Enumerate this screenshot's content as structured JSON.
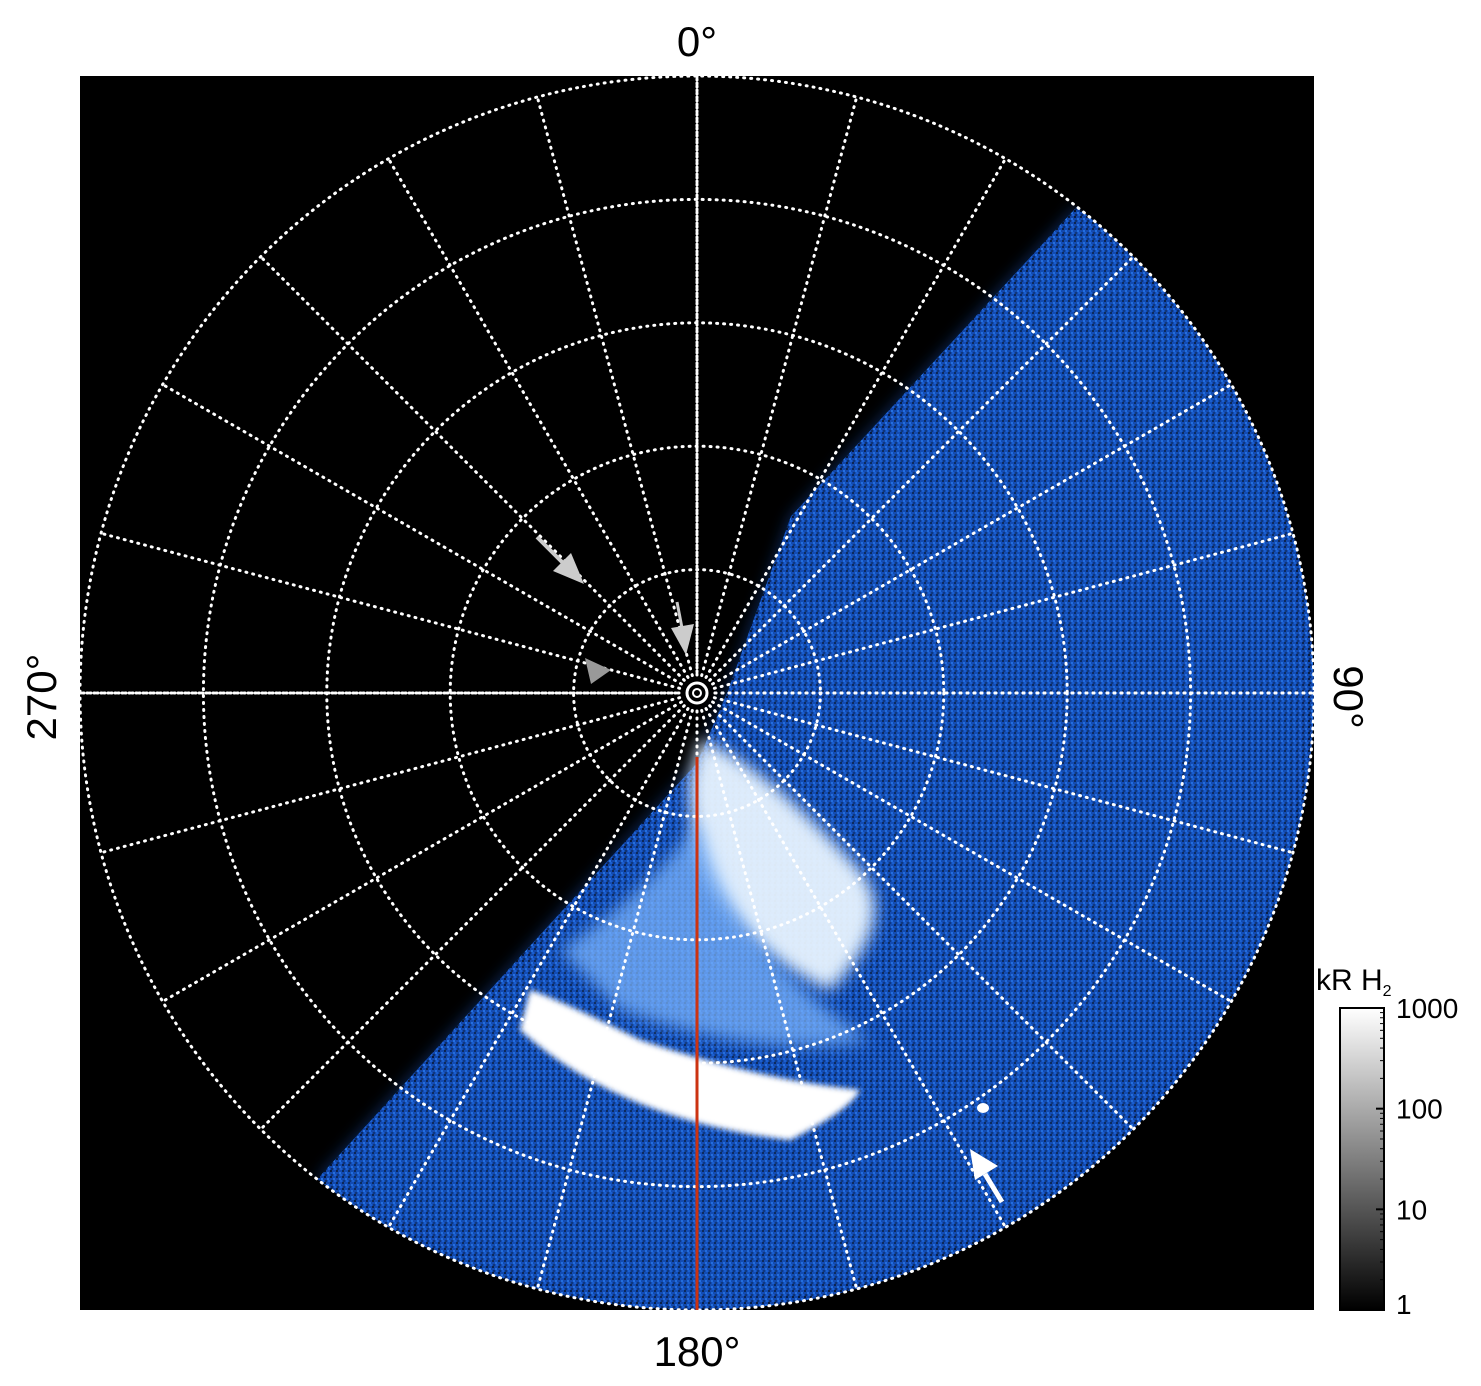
{
  "figure": {
    "labels": {
      "top": "0°",
      "right": "90°",
      "bottom": "180°",
      "left": "270°"
    },
    "colorbar": {
      "title": "kR H",
      "title_subscript": "2",
      "ticks": [
        "1000",
        "100",
        "10",
        "1"
      ],
      "scale": "log",
      "range": [
        1,
        1000
      ],
      "colors": [
        "#000000",
        "#ffffff"
      ]
    },
    "grid": {
      "style": "dotted",
      "color": "#ffffff",
      "circles": 5,
      "meridians": 24
    },
    "meridian_line": {
      "color": "#cc3311"
    },
    "emission_colors": [
      "#0a2a6a",
      "#1a5fd0",
      "#3a8ef5",
      "#9fd0ff",
      "#ffffff"
    ],
    "arrows": [
      {
        "color": "#cccccc",
        "count": 3
      },
      {
        "color": "#ffffff",
        "count": 1
      }
    ]
  }
}
